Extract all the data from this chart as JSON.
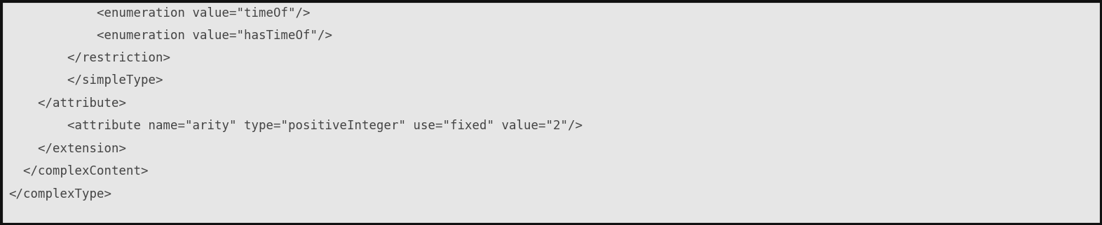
{
  "lines": [
    "            <enumeration value=\"timeOf\"/>",
    "            <enumeration value=\"hasTimeOf\"/>",
    "        </restriction>",
    "        </simpleType>",
    "    </attribute>",
    "        <attribute name=\"arity\" type=\"positiveInteger\" use=\"fixed\" value=\"2\"/>",
    "    </extension>",
    "  </complexContent>",
    "</complexType>"
  ],
  "bg_color": "#e6e6e6",
  "border_color": "#111111",
  "text_color": "#444444",
  "font_size": 12.5,
  "font_family": "monospace",
  "fig_width": 15.72,
  "fig_height": 3.22,
  "dpi": 100
}
